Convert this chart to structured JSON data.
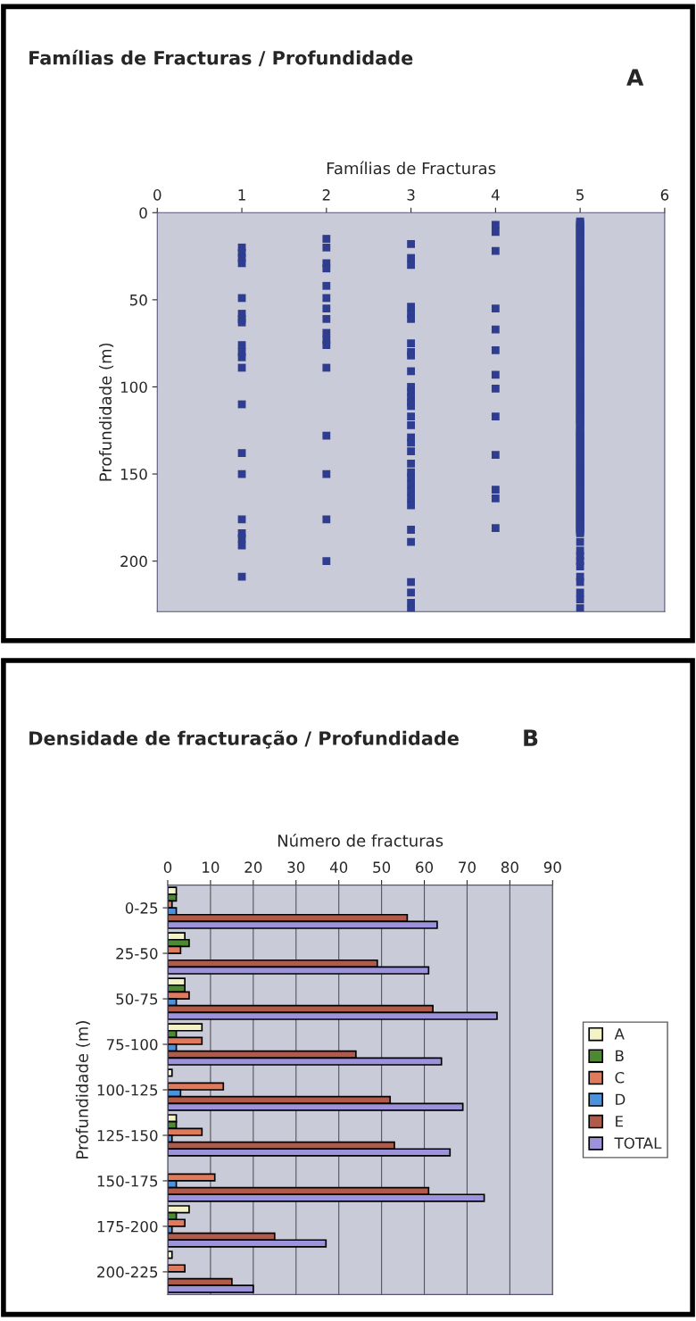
{
  "chart_data": [
    {
      "type": "scatter",
      "title": "Famílias de Fracturas / Profundidade",
      "annotations": [
        "A"
      ],
      "xlabel": "Famílias de Fracturas",
      "ylabel": "Profundidade (m)",
      "xlim": [
        0,
        6
      ],
      "xticks": [
        0,
        1,
        2,
        3,
        4,
        5,
        6
      ],
      "ylim": [
        229,
        0
      ],
      "yticks": [
        0,
        50,
        100,
        150,
        200
      ],
      "grid": false,
      "legend": false,
      "marker": "square",
      "series": [
        {
          "color": "#2e3d8f",
          "x": [
            1,
            1,
            1,
            1,
            1,
            1,
            1,
            1,
            1,
            1,
            1,
            1,
            1,
            1,
            1,
            1,
            1,
            1,
            1,
            1
          ],
          "values": [
            20,
            23,
            26,
            29,
            49,
            58,
            61,
            63,
            76,
            80,
            83,
            89,
            110,
            138,
            150,
            176,
            184,
            187,
            191,
            209
          ]
        },
        {
          "color": "#2e3d8f",
          "x": [
            2,
            2,
            2,
            2,
            2,
            2,
            2,
            2,
            2,
            2,
            2,
            2,
            2,
            2,
            2,
            2
          ],
          "values": [
            15,
            20,
            29,
            32,
            42,
            49,
            55,
            61,
            69,
            73,
            76,
            89,
            128,
            150,
            176,
            200
          ]
        },
        {
          "color": "#2e3d8f",
          "x": [
            3,
            3,
            3,
            3,
            3,
            3,
            3,
            3,
            3,
            3,
            3,
            3,
            3,
            3,
            3,
            3,
            3,
            3,
            3,
            3,
            3,
            3,
            3,
            3,
            3,
            3,
            3,
            3,
            3,
            3,
            3,
            3,
            3
          ],
          "values": [
            18,
            26,
            30,
            54,
            58,
            61,
            75,
            80,
            82,
            91,
            100,
            103,
            106,
            109,
            111,
            117,
            122,
            129,
            132,
            137,
            144,
            149,
            152,
            156,
            160,
            164,
            168,
            182,
            189,
            212,
            218,
            224,
            228
          ]
        },
        {
          "color": "#2e3d8f",
          "x": [
            4,
            4,
            4,
            4,
            4,
            4,
            4,
            4,
            4,
            4,
            4,
            4,
            4
          ],
          "values": [
            7,
            11,
            22,
            55,
            67,
            79,
            93,
            101,
            117,
            139,
            159,
            164,
            181
          ]
        },
        {
          "color": "#2e3d8f",
          "x": [
            5,
            5,
            5,
            5,
            5,
            5,
            5,
            5,
            5,
            5,
            5,
            5,
            5,
            5,
            5,
            5,
            5,
            5,
            5,
            5,
            5,
            5,
            5,
            5,
            5,
            5,
            5,
            5,
            5,
            5,
            5,
            5,
            5,
            5,
            5,
            5,
            5,
            5,
            5,
            5,
            5,
            5,
            5,
            5,
            5,
            5,
            5,
            5,
            5,
            5,
            5,
            5,
            5,
            5,
            5,
            5,
            5,
            5,
            5,
            5,
            5,
            5,
            5,
            5,
            5,
            5,
            5,
            5,
            5,
            5,
            5,
            5,
            5,
            5,
            5,
            5,
            5,
            5,
            5,
            5,
            5,
            5,
            5,
            5,
            5,
            5,
            5,
            5,
            5,
            5,
            5,
            5,
            5,
            5,
            5,
            5,
            5,
            5,
            5,
            5,
            5,
            5,
            5,
            5,
            5,
            5,
            5,
            5,
            5,
            5,
            5,
            5,
            5,
            5,
            5,
            5,
            5,
            5,
            5,
            5,
            5,
            5,
            5,
            5,
            5,
            5,
            5,
            5,
            5,
            5,
            5,
            5,
            5,
            5,
            5,
            5,
            5,
            5,
            5,
            5,
            5,
            5,
            5,
            5,
            5,
            5,
            5,
            5,
            5,
            5,
            5,
            5,
            5,
            5,
            5,
            5,
            5,
            5,
            5,
            5,
            5,
            5,
            5,
            5,
            5,
            5,
            5,
            5,
            5,
            5,
            5,
            5,
            5,
            5,
            5,
            5,
            5,
            5,
            5,
            5,
            5,
            5,
            5,
            5,
            5,
            5,
            5,
            5,
            5
          ],
          "values": [
            5,
            6,
            7,
            8,
            9,
            10,
            11,
            12,
            13,
            14,
            15,
            16,
            17,
            18,
            19,
            20,
            21,
            22,
            23,
            24,
            25,
            26,
            27,
            28,
            29,
            30,
            31,
            32,
            33,
            34,
            35,
            36,
            37,
            38,
            39,
            40,
            41,
            42,
            43,
            44,
            45,
            46,
            47,
            48,
            49,
            50,
            51,
            52,
            53,
            54,
            55,
            56,
            57,
            58,
            59,
            60,
            61,
            62,
            63,
            64,
            65,
            66,
            67,
            68,
            69,
            70,
            71,
            72,
            73,
            74,
            75,
            76,
            77,
            78,
            79,
            80,
            81,
            82,
            83,
            84,
            85,
            86,
            87,
            88,
            89,
            90,
            91,
            92,
            93,
            94,
            95,
            96,
            97,
            98,
            99,
            100,
            101,
            102,
            103,
            104,
            105,
            106,
            107,
            108,
            109,
            110,
            111,
            112,
            113,
            114,
            115,
            116,
            117,
            118,
            119,
            120,
            121,
            122,
            124,
            125,
            126,
            127,
            128,
            129,
            130,
            131,
            132,
            133,
            134,
            135,
            136,
            137,
            138,
            139,
            140,
            141,
            142,
            143,
            144,
            145,
            146,
            147,
            148,
            149,
            150,
            151,
            152,
            153,
            154,
            155,
            156,
            157,
            158,
            159,
            160,
            161,
            162,
            163,
            164,
            165,
            166,
            167,
            168,
            169,
            170,
            171,
            172,
            173,
            174,
            175,
            176,
            177,
            178,
            179,
            180,
            181,
            182,
            183,
            184,
            189,
            194,
            197,
            200,
            203,
            209,
            212,
            218,
            222,
            227
          ]
        }
      ]
    },
    {
      "type": "bar",
      "orientation": "horizontal",
      "title": "Densidade de fracturação / Profundidade",
      "annotations": [
        "B"
      ],
      "xlabel": "Número de fracturas",
      "ylabel": "Profundidade (m)",
      "xlim": [
        0,
        90
      ],
      "xticks": [
        0,
        10,
        20,
        30,
        40,
        50,
        60,
        70,
        80,
        90
      ],
      "grid": "x",
      "legend": "right",
      "categories": [
        "0-25",
        "25-50",
        "50-75",
        "75-100",
        "100-125",
        "125-150",
        "150-175",
        "175-200",
        "200-225"
      ],
      "series": [
        {
          "name": "A",
          "color": "#f3f3c6",
          "values": [
            2,
            4,
            4,
            8,
            1,
            2,
            0,
            5,
            1
          ]
        },
        {
          "name": "B",
          "color": "#4b8a32",
          "values": [
            2,
            5,
            4,
            2,
            0,
            2,
            0,
            2,
            0
          ]
        },
        {
          "name": "C",
          "color": "#e07a5c",
          "values": [
            1,
            3,
            5,
            8,
            13,
            8,
            11,
            4,
            4
          ]
        },
        {
          "name": "D",
          "color": "#4a92dc",
          "values": [
            2,
            0,
            2,
            2,
            3,
            1,
            2,
            1,
            0
          ]
        },
        {
          "name": "E",
          "color": "#b25a4a",
          "values": [
            56,
            49,
            62,
            44,
            52,
            53,
            61,
            25,
            15
          ]
        },
        {
          "name": "TOTAL",
          "color": "#9d92dc",
          "values": [
            63,
            61,
            77,
            64,
            69,
            66,
            74,
            37,
            20
          ]
        }
      ]
    }
  ]
}
